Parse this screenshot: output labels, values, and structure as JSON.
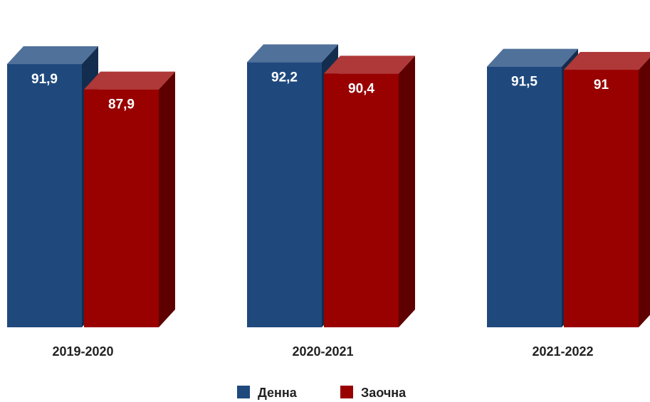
{
  "chart_data": {
    "type": "bar",
    "categories": [
      "2019-2020",
      "2020-2021",
      "2021-2022"
    ],
    "series": [
      {
        "name": "Денна",
        "values": [
          91.9,
          92.2,
          91.5
        ],
        "labels": [
          "91,9",
          "92,2",
          "91,5"
        ],
        "color": "#1f497d"
      },
      {
        "name": "Заочна",
        "values": [
          87.9,
          90.4,
          91
        ],
        "labels": [
          "87,9",
          "90,4",
          "91"
        ],
        "color": "#990000"
      }
    ],
    "ylim": [
      0,
      100
    ],
    "grid": false,
    "legend": "bottom-center",
    "style": "3d-column"
  }
}
